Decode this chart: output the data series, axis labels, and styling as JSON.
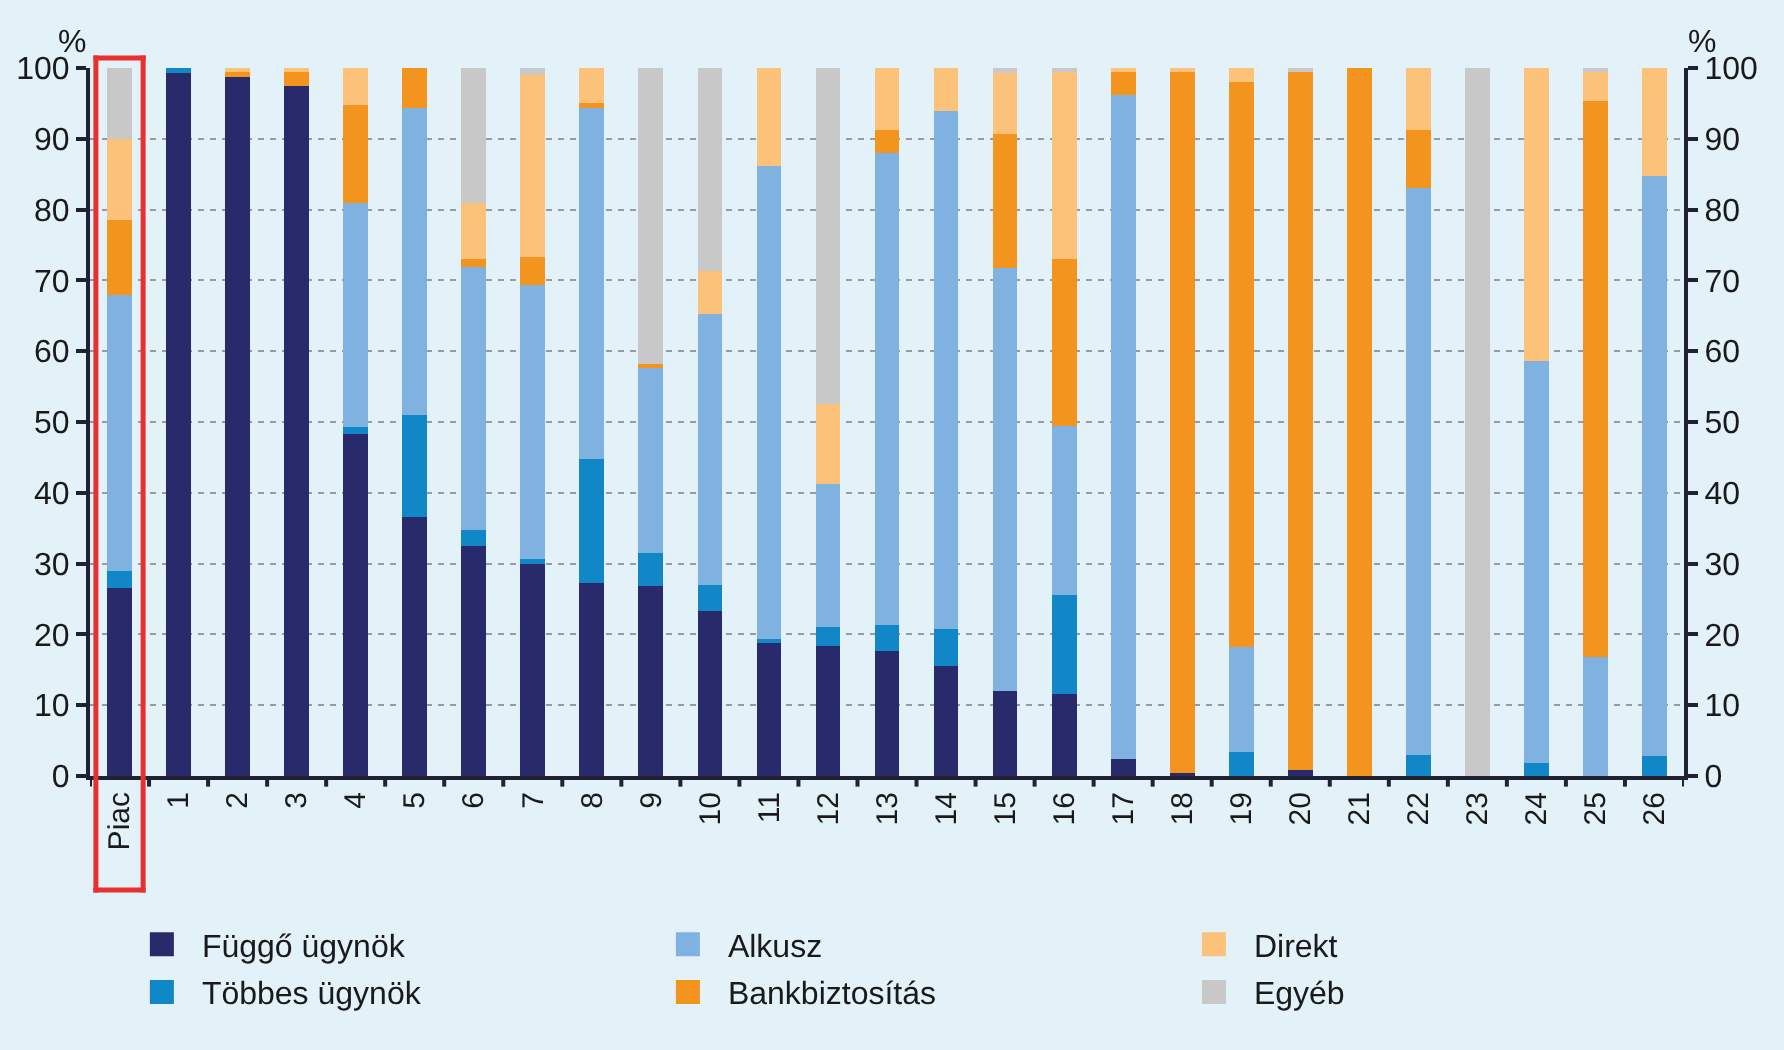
{
  "chart_data": {
    "type": "bar",
    "stacked": true,
    "ylabel": "%",
    "y2label": "%",
    "categories": [
      "Piac",
      "1",
      "2",
      "3",
      "4",
      "5",
      "6",
      "7",
      "8",
      "9",
      "10",
      "11",
      "12",
      "13",
      "14",
      "15",
      "16",
      "17",
      "18",
      "19",
      "20",
      "21",
      "22",
      "23",
      "24",
      "25",
      "26"
    ],
    "series": [
      {
        "name": "Függő ügynök",
        "color": "#282a6b",
        "values": [
          26.5,
          99.3,
          98.8,
          97.5,
          48.3,
          36.6,
          32.5,
          30,
          27.3,
          26.8,
          23.3,
          18.8,
          18.3,
          17.7,
          15.6,
          12,
          11.6,
          2.4,
          0.4,
          0,
          0.8,
          0,
          0,
          0,
          0,
          0,
          0
        ]
      },
      {
        "name": "Többes ügynök",
        "color": "#1287c8",
        "values": [
          2.5,
          0.7,
          0,
          0,
          1,
          14.4,
          2.3,
          0.6,
          17.5,
          4.7,
          3.7,
          0.6,
          2.7,
          3.6,
          5.2,
          0,
          13.9,
          0,
          0,
          3.4,
          0,
          0,
          2.9,
          0,
          1.9,
          0,
          2.8
        ]
      },
      {
        "name": "Alkusz",
        "color": "#7fb2e0",
        "values": [
          39,
          0,
          0,
          0,
          31.7,
          43.3,
          37.1,
          38.7,
          49.5,
          26.1,
          38.2,
          66.8,
          20.3,
          66.7,
          73.1,
          59.7,
          23.9,
          93.8,
          0,
          14.8,
          0,
          0,
          80.1,
          0,
          56.7,
          16.8,
          81.9
        ]
      },
      {
        "name": "Bankbiztosítás",
        "color": "#f3941f",
        "values": [
          10.5,
          0,
          0.8,
          2.1,
          13.8,
          5.7,
          1.1,
          4,
          0.7,
          0.6,
          0,
          0,
          0,
          3.2,
          0,
          19,
          23.6,
          3.3,
          99.2,
          79.8,
          98.6,
          100,
          8.2,
          0,
          0,
          78.6,
          0
        ]
      },
      {
        "name": "Direkt",
        "color": "#fdc27a",
        "values": [
          11.5,
          0,
          0.4,
          0.4,
          5.2,
          0,
          8,
          25.7,
          5,
          0,
          6.1,
          13.8,
          11.2,
          8.8,
          6.1,
          8.6,
          26.5,
          0.5,
          0.4,
          2,
          0,
          0,
          8.8,
          0,
          41.4,
          4,
          15.3
        ]
      },
      {
        "name": "Egyéb",
        "color": "#c8c8c8",
        "values": [
          10,
          0,
          0,
          0,
          0,
          0,
          19,
          1,
          0,
          41.8,
          28.7,
          0,
          47.5,
          0,
          0,
          0.7,
          0.5,
          0,
          0,
          0,
          0.6,
          0,
          0,
          100,
          0,
          0.6,
          0
        ]
      }
    ],
    "ylim": [
      0,
      100
    ],
    "yticks": [
      0,
      10,
      20,
      30,
      40,
      50,
      60,
      70,
      80,
      90,
      100
    ],
    "y2lim": [
      0,
      100
    ],
    "y2ticks": [
      0,
      10,
      20,
      30,
      40,
      50,
      60,
      70,
      80,
      90,
      100
    ],
    "grid": "y",
    "legend": "bottom"
  }
}
